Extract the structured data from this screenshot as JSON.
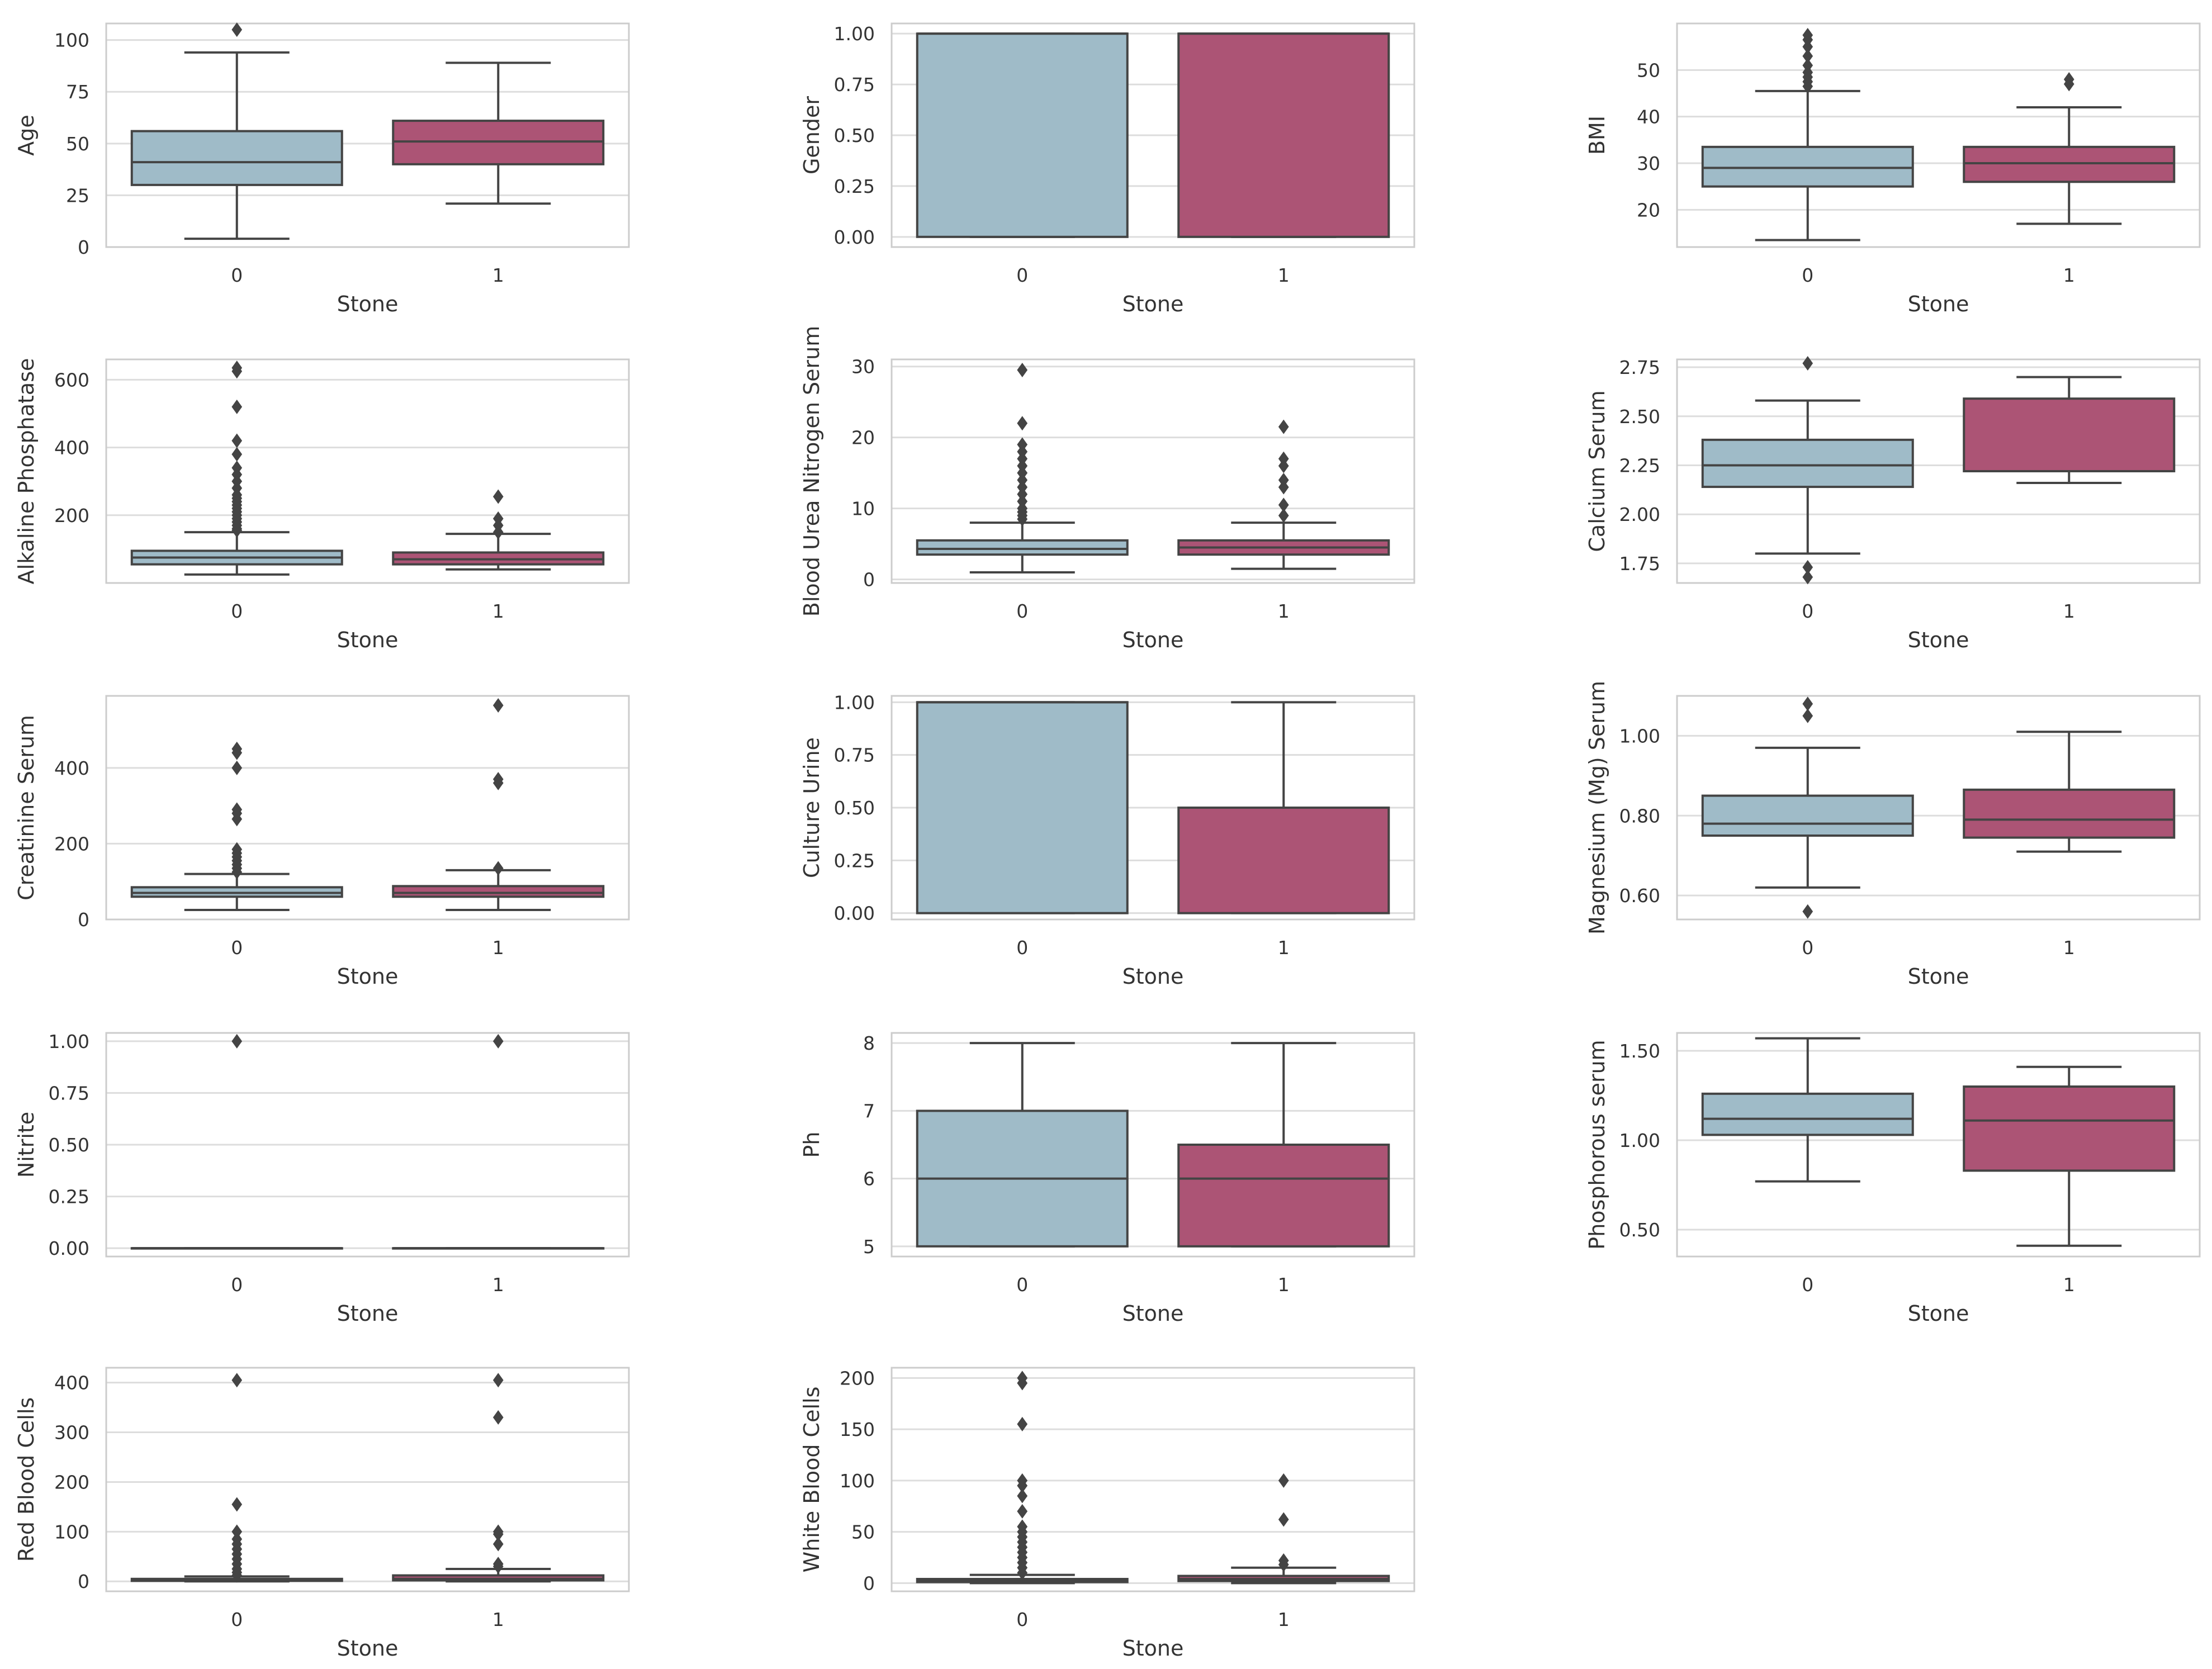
{
  "colors": {
    "class0": "#9fbbc8",
    "class1": "#ac5475",
    "line": "#444444",
    "grid": "#dddddd",
    "spine": "#cccccc"
  },
  "chart_data": [
    {
      "type": "box",
      "title": "",
      "xlabel": "Stone",
      "ylabel": "Age",
      "categories": [
        "0",
        "1"
      ],
      "ylim": [
        0,
        108
      ],
      "yticks": [
        0,
        25,
        50,
        75,
        100
      ],
      "boxes": [
        {
          "min": 4,
          "q1": 30,
          "median": 41,
          "q3": 56,
          "max": 94,
          "outliers": [
            105
          ]
        },
        {
          "min": 21,
          "q1": 40,
          "median": 51,
          "q3": 61,
          "max": 89,
          "outliers": []
        }
      ]
    },
    {
      "type": "box",
      "title": "",
      "xlabel": "Stone",
      "ylabel": "Gender",
      "categories": [
        "0",
        "1"
      ],
      "ylim": [
        -0.05,
        1.05
      ],
      "yticks": [
        0.0,
        0.25,
        0.5,
        0.75,
        1.0
      ],
      "boxes": [
        {
          "min": 0,
          "q1": 0,
          "median": 1,
          "q3": 1,
          "max": 1,
          "outliers": []
        },
        {
          "min": 0,
          "q1": 0,
          "median": 1,
          "q3": 1,
          "max": 1,
          "outliers": []
        }
      ]
    },
    {
      "type": "box",
      "title": "",
      "xlabel": "Stone",
      "ylabel": "BMI",
      "categories": [
        "0",
        "1"
      ],
      "ylim": [
        12,
        60
      ],
      "yticks": [
        20,
        30,
        40,
        50
      ],
      "boxes": [
        {
          "min": 13.5,
          "q1": 25,
          "median": 29,
          "q3": 33.5,
          "max": 45.5,
          "outliers": [
            46.5,
            47.5,
            48.5,
            49.5,
            51,
            53,
            55,
            56.5,
            57.5
          ]
        },
        {
          "min": 17,
          "q1": 26,
          "median": 30,
          "q3": 33.5,
          "max": 42,
          "outliers": [
            47,
            48
          ]
        }
      ]
    },
    {
      "type": "box",
      "title": "",
      "xlabel": "Stone",
      "ylabel": "Alkaline Phosphatase",
      "categories": [
        "0",
        "1"
      ],
      "ylim": [
        0,
        660
      ],
      "yticks": [
        200,
        400,
        600
      ],
      "boxes": [
        {
          "min": 25,
          "q1": 55,
          "median": 75,
          "q3": 95,
          "max": 150,
          "outliers": [
            155,
            160,
            170,
            180,
            190,
            200,
            210,
            220,
            230,
            240,
            250,
            260,
            280,
            300,
            320,
            340,
            380,
            420,
            520,
            625,
            635
          ]
        },
        {
          "min": 40,
          "q1": 55,
          "median": 70,
          "q3": 90,
          "max": 145,
          "outliers": [
            150,
            170,
            190,
            255
          ]
        }
      ]
    },
    {
      "type": "box",
      "title": "",
      "xlabel": "Stone",
      "ylabel": "Blood Urea Nitrogen Serum",
      "categories": [
        "0",
        "1"
      ],
      "ylim": [
        -0.5,
        31
      ],
      "yticks": [
        0,
        10,
        20,
        30
      ],
      "boxes": [
        {
          "min": 1,
          "q1": 3.5,
          "median": 4.3,
          "q3": 5.5,
          "max": 8,
          "outliers": [
            8.5,
            9,
            9.5,
            10,
            11,
            12,
            13,
            14,
            15,
            16,
            17,
            18,
            19,
            22,
            29.5
          ]
        },
        {
          "min": 1.5,
          "q1": 3.5,
          "median": 4.5,
          "q3": 5.5,
          "max": 8,
          "outliers": [
            9,
            10.5,
            13,
            14,
            16,
            17,
            21.5
          ]
        }
      ]
    },
    {
      "type": "box",
      "title": "",
      "xlabel": "Stone",
      "ylabel": "Calcium Serum",
      "categories": [
        "0",
        "1"
      ],
      "ylim": [
        1.65,
        2.79
      ],
      "yticks": [
        1.75,
        2.0,
        2.25,
        2.5,
        2.75
      ],
      "boxes": [
        {
          "min": 1.8,
          "q1": 2.14,
          "median": 2.25,
          "q3": 2.38,
          "max": 2.58,
          "outliers": [
            1.68,
            1.73,
            2.77
          ]
        },
        {
          "min": 2.16,
          "q1": 2.22,
          "median": 2.22,
          "q3": 2.59,
          "max": 2.7,
          "outliers": []
        }
      ]
    },
    {
      "type": "box",
      "title": "",
      "xlabel": "Stone",
      "ylabel": "Creatinine Serum",
      "categories": [
        "0",
        "1"
      ],
      "ylim": [
        0,
        590
      ],
      "yticks": [
        0,
        200,
        400
      ],
      "boxes": [
        {
          "min": 25,
          "q1": 60,
          "median": 70,
          "q3": 85,
          "max": 120,
          "outliers": [
            125,
            135,
            145,
            155,
            165,
            175,
            185,
            265,
            280,
            290,
            400,
            440,
            450
          ]
        },
        {
          "min": 25,
          "q1": 60,
          "median": 70,
          "q3": 88,
          "max": 130,
          "outliers": [
            135,
            360,
            370,
            565
          ]
        }
      ]
    },
    {
      "type": "box",
      "title": "",
      "xlabel": "Stone",
      "ylabel": "Culture Urine",
      "categories": [
        "0",
        "1"
      ],
      "ylim": [
        -0.03,
        1.03
      ],
      "yticks": [
        0.0,
        0.25,
        0.5,
        0.75,
        1.0
      ],
      "boxes": [
        {
          "min": 0,
          "q1": 0,
          "median": 1,
          "q3": 1,
          "max": 1,
          "outliers": []
        },
        {
          "min": 0,
          "q1": 0,
          "median": 0.5,
          "q3": 0.5,
          "max": 1,
          "outliers": []
        }
      ]
    },
    {
      "type": "box",
      "title": "",
      "xlabel": "Stone",
      "ylabel": "Magnesium (Mg) Serum",
      "categories": [
        "0",
        "1"
      ],
      "ylim": [
        0.54,
        1.1
      ],
      "yticks": [
        0.6,
        0.8,
        1.0
      ],
      "boxes": [
        {
          "min": 0.62,
          "q1": 0.75,
          "median": 0.78,
          "q3": 0.85,
          "max": 0.97,
          "outliers": [
            0.56,
            1.05,
            1.08
          ]
        },
        {
          "min": 0.71,
          "q1": 0.745,
          "median": 0.79,
          "q3": 0.865,
          "max": 1.01,
          "outliers": []
        }
      ]
    },
    {
      "type": "box",
      "title": "",
      "xlabel": "Stone",
      "ylabel": "Nitrite",
      "categories": [
        "0",
        "1"
      ],
      "ylim": [
        -0.04,
        1.04
      ],
      "yticks": [
        0.0,
        0.25,
        0.5,
        0.75,
        1.0
      ],
      "boxes": [
        {
          "min": 0,
          "q1": 0,
          "median": 0,
          "q3": 0,
          "max": 0,
          "outliers": [
            1.0
          ]
        },
        {
          "min": 0,
          "q1": 0,
          "median": 0,
          "q3": 0,
          "max": 0,
          "outliers": [
            1.0
          ]
        }
      ]
    },
    {
      "type": "box",
      "title": "",
      "xlabel": "Stone",
      "ylabel": "Ph",
      "categories": [
        "0",
        "1"
      ],
      "ylim": [
        4.85,
        8.15
      ],
      "yticks": [
        5,
        6,
        7,
        8
      ],
      "boxes": [
        {
          "min": 5,
          "q1": 5,
          "median": 6,
          "q3": 7,
          "max": 8,
          "outliers": []
        },
        {
          "min": 5,
          "q1": 5,
          "median": 6,
          "q3": 6.5,
          "max": 8,
          "outliers": []
        }
      ]
    },
    {
      "type": "box",
      "title": "",
      "xlabel": "Stone",
      "ylabel": "Phosphorous serum",
      "categories": [
        "0",
        "1"
      ],
      "ylim": [
        0.35,
        1.6
      ],
      "yticks": [
        0.5,
        1.0,
        1.5
      ],
      "boxes": [
        {
          "min": 0.77,
          "q1": 1.03,
          "median": 1.12,
          "q3": 1.26,
          "max": 1.57,
          "outliers": []
        },
        {
          "min": 0.41,
          "q1": 0.83,
          "median": 1.11,
          "q3": 1.3,
          "max": 1.41,
          "outliers": []
        }
      ]
    },
    {
      "type": "box",
      "title": "",
      "xlabel": "Stone",
      "ylabel": "Red Blood Cells",
      "categories": [
        "0",
        "1"
      ],
      "ylim": [
        -20,
        430
      ],
      "yticks": [
        0,
        100,
        200,
        300,
        400
      ],
      "boxes": [
        {
          "min": 0,
          "q1": 1,
          "median": 2,
          "q3": 5,
          "max": 10,
          "outliers": [
            12,
            18,
            25,
            35,
            45,
            55,
            65,
            75,
            85,
            100,
            155,
            405
          ]
        },
        {
          "min": 0,
          "q1": 2,
          "median": 5,
          "q3": 12,
          "max": 25,
          "outliers": [
            30,
            35,
            75,
            95,
            100,
            330,
            405
          ]
        }
      ]
    },
    {
      "type": "box",
      "title": "",
      "xlabel": "Stone",
      "ylabel": "White Blood Cells",
      "categories": [
        "0",
        "1"
      ],
      "ylim": [
        -8,
        210
      ],
      "yticks": [
        0,
        50,
        100,
        150,
        200
      ],
      "boxes": [
        {
          "min": 0,
          "q1": 1,
          "median": 2,
          "q3": 4,
          "max": 8,
          "outliers": [
            10,
            15,
            20,
            25,
            30,
            35,
            40,
            45,
            50,
            55,
            70,
            85,
            95,
            100,
            155,
            195,
            200
          ]
        },
        {
          "min": 0,
          "q1": 2,
          "median": 4,
          "q3": 7,
          "max": 15,
          "outliers": [
            18,
            22,
            62,
            100
          ]
        }
      ]
    }
  ]
}
